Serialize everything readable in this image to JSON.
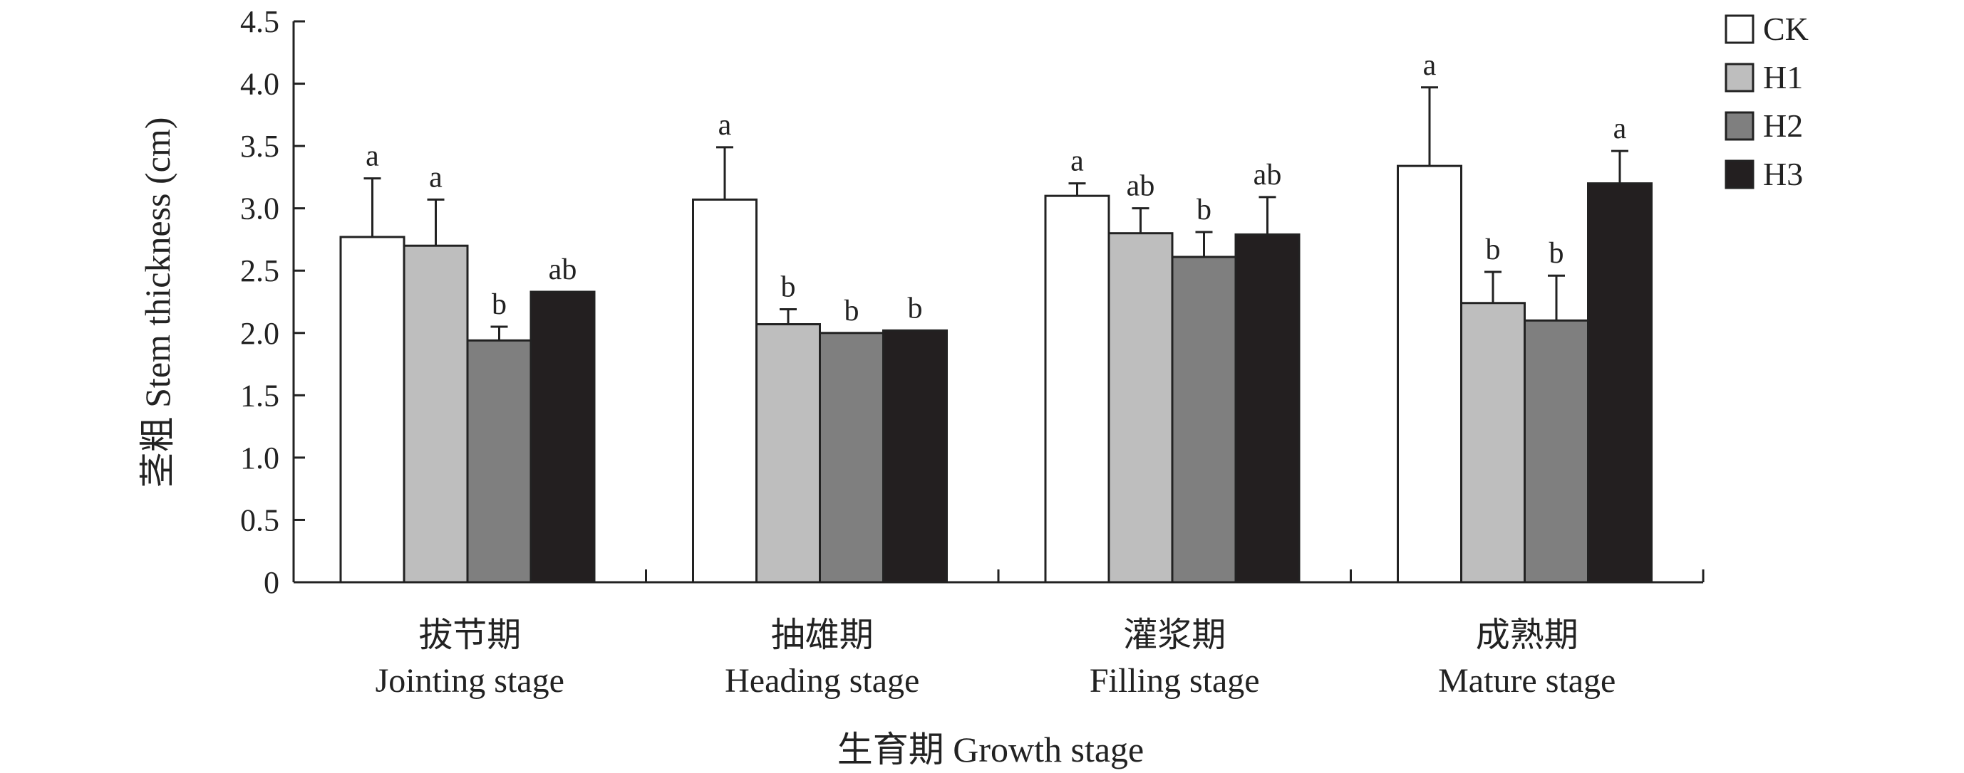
{
  "chart_data": {
    "type": "bar",
    "title": "",
    "xlabel": "生育期 Growth stage",
    "ylabel": "茎粗 Stem thickness (cm)",
    "ylim": [
      0,
      4.5
    ],
    "yticks": [
      0,
      0.5,
      1.0,
      1.5,
      2.0,
      2.5,
      3.0,
      3.5,
      4.0,
      4.5
    ],
    "ytick_labels": [
      "0",
      "0.5",
      "1.0",
      "1.5",
      "2.0",
      "2.5",
      "3.0",
      "3.5",
      "4.0",
      "4.5"
    ],
    "grid": false,
    "legend_position": "top-right",
    "categories": [
      {
        "zh": "拔节期",
        "en": "Jointing stage"
      },
      {
        "zh": "抽雄期",
        "en": "Heading stage"
      },
      {
        "zh": "灌浆期",
        "en": "Filling stage"
      },
      {
        "zh": "成熟期",
        "en": "Mature stage"
      }
    ],
    "series": [
      {
        "name": "CK",
        "color": "#ffffff",
        "values": [
          2.77,
          3.07,
          3.1,
          3.34
        ],
        "errors": [
          0.47,
          0.42,
          0.1,
          0.63
        ],
        "letters": [
          "a",
          "a",
          "a",
          "a"
        ]
      },
      {
        "name": "H1",
        "color": "#bebebe",
        "values": [
          2.7,
          2.07,
          2.8,
          2.24
        ],
        "errors": [
          0.37,
          0.12,
          0.2,
          0.25
        ],
        "letters": [
          "a",
          "b",
          "ab",
          "b"
        ]
      },
      {
        "name": "H2",
        "color": "#7f7f7f",
        "values": [
          1.94,
          2.0,
          2.61,
          2.1
        ],
        "errors": [
          0.11,
          0.0,
          0.2,
          0.36
        ],
        "letters": [
          "b",
          "b",
          "b",
          "b"
        ]
      },
      {
        "name": "H3",
        "color": "#231f20",
        "values": [
          2.33,
          2.02,
          2.79,
          3.2
        ],
        "errors": [
          0.0,
          0.0,
          0.3,
          0.26
        ],
        "letters": [
          "ab",
          "b",
          "ab",
          "a"
        ]
      }
    ]
  }
}
